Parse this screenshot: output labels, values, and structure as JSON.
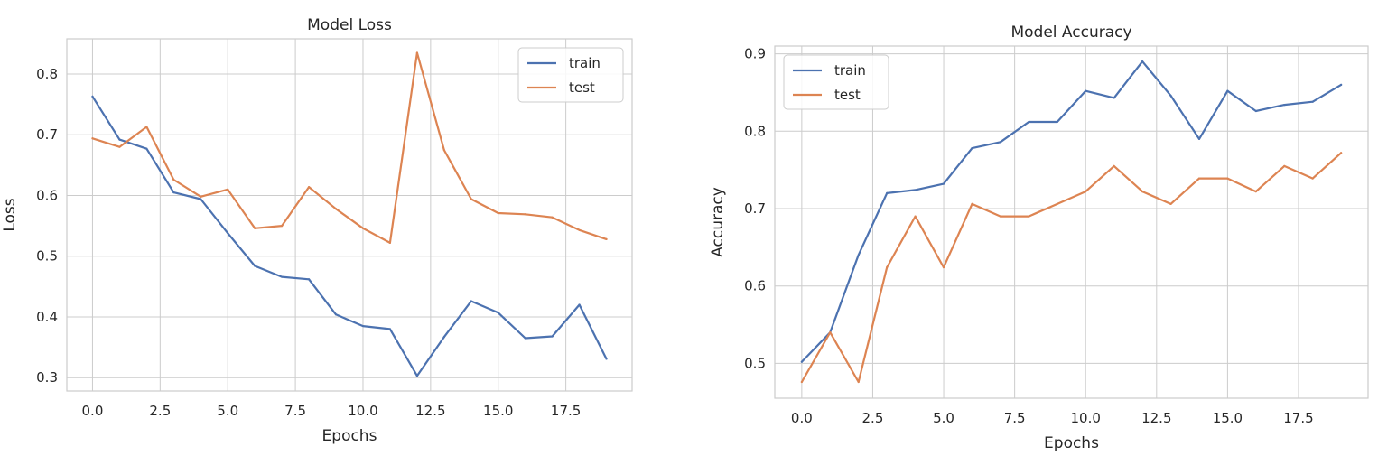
{
  "chart_data": [
    {
      "type": "line",
      "title": "Model Loss",
      "xlabel": "Epochs",
      "ylabel": "Loss",
      "x": [
        0,
        1,
        2,
        3,
        4,
        5,
        6,
        7,
        8,
        9,
        10,
        11,
        12,
        13,
        14,
        15,
        16,
        17,
        18,
        19
      ],
      "xticks": [
        0.0,
        2.5,
        5.0,
        7.5,
        10.0,
        12.5,
        15.0,
        17.5
      ],
      "xtick_labels": [
        "0.0",
        "2.5",
        "5.0",
        "7.5",
        "10.0",
        "12.5",
        "15.0",
        "17.5"
      ],
      "yticks": [
        0.3,
        0.4,
        0.5,
        0.6,
        0.7,
        0.8
      ],
      "ytick_labels": [
        "0.3",
        "0.4",
        "0.5",
        "0.6",
        "0.7",
        "0.8"
      ],
      "xlim": [
        -0.95,
        19.95
      ],
      "ylim": [
        0.278,
        0.858
      ],
      "grid": true,
      "legend_position": "upper right",
      "series": [
        {
          "name": "train",
          "color": "#4c72b0",
          "values": [
            0.763,
            0.692,
            0.677,
            0.605,
            0.594,
            0.538,
            0.484,
            0.466,
            0.462,
            0.404,
            0.385,
            0.38,
            0.303,
            0.367,
            0.426,
            0.407,
            0.365,
            0.368,
            0.42,
            0.331
          ]
        },
        {
          "name": "test",
          "color": "#dd8452",
          "values": [
            0.694,
            0.68,
            0.713,
            0.626,
            0.598,
            0.61,
            0.546,
            0.55,
            0.614,
            0.578,
            0.546,
            0.522,
            0.835,
            0.675,
            0.594,
            0.571,
            0.569,
            0.564,
            0.543,
            0.528
          ]
        }
      ]
    },
    {
      "type": "line",
      "title": "Model Accuracy",
      "xlabel": "Epochs",
      "ylabel": "Accuracy",
      "x": [
        0,
        1,
        2,
        3,
        4,
        5,
        6,
        7,
        8,
        9,
        10,
        11,
        12,
        13,
        14,
        15,
        16,
        17,
        18,
        19
      ],
      "xticks": [
        0.0,
        2.5,
        5.0,
        7.5,
        10.0,
        12.5,
        15.0,
        17.5
      ],
      "xtick_labels": [
        "0.0",
        "2.5",
        "5.0",
        "7.5",
        "10.0",
        "12.5",
        "15.0",
        "17.5"
      ],
      "yticks": [
        0.5,
        0.6,
        0.7,
        0.8,
        0.9
      ],
      "ytick_labels": [
        "0.5",
        "0.6",
        "0.7",
        "0.8",
        "0.9"
      ],
      "xlim": [
        -0.95,
        19.95
      ],
      "ylim": [
        0.455,
        0.91
      ],
      "grid": true,
      "legend_position": "upper left",
      "series": [
        {
          "name": "train",
          "color": "#4c72b0",
          "values": [
            0.502,
            0.54,
            0.64,
            0.72,
            0.724,
            0.732,
            0.778,
            0.786,
            0.812,
            0.812,
            0.852,
            0.843,
            0.89,
            0.846,
            0.79,
            0.852,
            0.826,
            0.834,
            0.838,
            0.86
          ]
        },
        {
          "name": "test",
          "color": "#dd8452",
          "values": [
            0.476,
            0.54,
            0.476,
            0.624,
            0.69,
            0.624,
            0.706,
            0.69,
            0.69,
            0.706,
            0.722,
            0.755,
            0.722,
            0.706,
            0.739,
            0.739,
            0.722,
            0.755,
            0.739,
            0.772
          ]
        }
      ]
    }
  ]
}
